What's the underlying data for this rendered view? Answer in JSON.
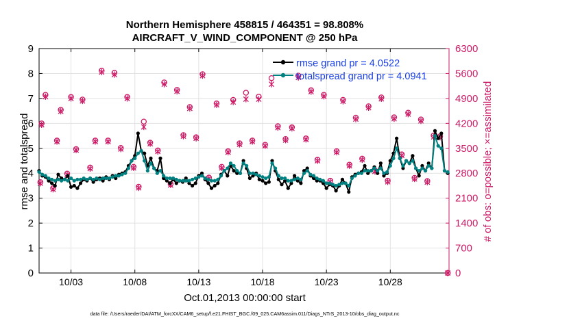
{
  "chart_data": {
    "type": "line",
    "title_line1": "Northern Hemisphere 458815 / 464351 = 98.808%",
    "title_line2": "AIRCRAFT_V_WIND_COMPONENT @ 250 hPa",
    "xlabel": "Oct.01,2013 00:00:00 start",
    "ylabel_left": "rmse and totalspread",
    "ylabel_right": "# of obs: o=possible; ×=assimilated",
    "footnote": "data file: /Users/raeder/DAI/ATM_forcXX/CAM6_setup/f.e21.FHIST_BGC.f09_025.CAM6assim.011/Diags_NTrS_2013-10/obs_diag_output.nc",
    "xlim": [
      0.5,
      32.6
    ],
    "ylim_left": [
      0,
      9
    ],
    "ylim_right": [
      0,
      6300
    ],
    "x_ticks": [
      {
        "label": "10/03",
        "value": 3
      },
      {
        "label": "10/08",
        "value": 8
      },
      {
        "label": "10/13",
        "value": 13
      },
      {
        "label": "10/18",
        "value": 18
      },
      {
        "label": "10/23",
        "value": 23
      },
      {
        "label": "10/28",
        "value": 28
      }
    ],
    "y_ticks_left": [
      "0",
      "1",
      "2",
      "3",
      "4",
      "5",
      "6",
      "7",
      "8",
      "9"
    ],
    "y_ticks_right": [
      "0",
      "700",
      "1400",
      "2100",
      "2800",
      "3500",
      "4200",
      "4900",
      "5600",
      "6300"
    ],
    "legend": [
      {
        "label": "rmse grand pr = 4.0522",
        "color": "#000000"
      },
      {
        "label": "totalspread grand pr = 4.0941",
        "color": "#008080"
      }
    ],
    "colors": {
      "rmse": "#000000",
      "spread": "#008080",
      "obs": "#cc1a66",
      "label_blue": "#1a40e6"
    },
    "x": [
      0.5,
      0.75,
      1.0,
      1.25,
      1.5,
      1.75,
      2.0,
      2.25,
      2.5,
      2.75,
      3.0,
      3.25,
      3.5,
      3.75,
      4.0,
      4.25,
      4.5,
      4.75,
      5.0,
      5.25,
      5.5,
      5.75,
      6.0,
      6.25,
      6.5,
      6.75,
      7.0,
      7.25,
      7.5,
      7.75,
      8.0,
      8.25,
      8.5,
      8.75,
      9.0,
      9.25,
      9.5,
      9.75,
      10.0,
      10.25,
      10.5,
      10.75,
      11.0,
      11.25,
      11.5,
      11.75,
      12.0,
      12.25,
      12.5,
      12.75,
      13.0,
      13.25,
      13.5,
      13.75,
      14.0,
      14.25,
      14.5,
      14.75,
      15.0,
      15.25,
      15.5,
      15.75,
      16.0,
      16.25,
      16.5,
      16.75,
      17.0,
      17.25,
      17.5,
      17.75,
      18.0,
      18.25,
      18.5,
      18.75,
      19.0,
      19.25,
      19.5,
      19.75,
      20.0,
      20.25,
      20.5,
      20.75,
      21.0,
      21.25,
      21.5,
      21.75,
      22.0,
      22.25,
      22.5,
      22.75,
      23.0,
      23.25,
      23.5,
      23.75,
      24.0,
      24.25,
      24.5,
      24.75,
      25.0,
      25.25,
      25.5,
      25.75,
      26.0,
      26.25,
      26.5,
      26.75,
      27.0,
      27.25,
      27.5,
      27.75,
      28.0,
      28.25,
      28.5,
      28.75,
      29.0,
      29.25,
      29.5,
      29.75,
      30.0,
      30.25,
      30.5,
      30.75,
      31.0,
      31.25,
      31.5,
      31.75,
      32.0,
      32.25,
      32.5
    ],
    "series": [
      {
        "name": "rmse",
        "values": [
          4.1,
          3.9,
          3.85,
          3.7,
          3.6,
          3.5,
          3.95,
          3.8,
          3.75,
          3.9,
          3.45,
          3.5,
          3.4,
          3.6,
          3.75,
          3.7,
          3.8,
          3.65,
          3.75,
          3.8,
          3.7,
          3.85,
          3.75,
          3.9,
          3.8,
          3.95,
          4.0,
          4.05,
          4.3,
          4.5,
          4.7,
          5.6,
          4.9,
          4.8,
          4.3,
          4.6,
          4.2,
          4.1,
          4.6,
          3.8,
          3.7,
          3.6,
          3.75,
          3.6,
          3.7,
          3.65,
          3.8,
          3.6,
          3.5,
          3.6,
          3.9,
          4.0,
          3.75,
          3.6,
          3.4,
          3.5,
          3.6,
          3.95,
          4.1,
          3.9,
          4.3,
          4.1,
          4.0,
          4.0,
          4.5,
          4.2,
          3.8,
          3.9,
          4.0,
          3.75,
          3.7,
          3.6,
          3.65,
          4.5,
          4.1,
          3.75,
          3.55,
          3.7,
          3.4,
          3.6,
          3.9,
          3.7,
          3.6,
          4.1,
          4.2,
          3.9,
          3.8,
          3.7,
          3.7,
          3.6,
          3.4,
          3.55,
          3.5,
          3.3,
          3.5,
          3.75,
          3.6,
          3.25,
          3.85,
          3.95,
          4.0,
          4.05,
          4.3,
          4.0,
          4.1,
          4.25,
          4.0,
          4.4,
          3.9,
          4.0,
          4.5,
          4.8,
          5.4,
          4.6,
          4.2,
          4.5,
          4.4,
          4.7,
          4.2,
          3.9,
          4.3,
          4.1,
          4.4,
          4.2,
          5.7,
          5.4,
          5.6,
          4.1,
          4.0
        ]
      },
      {
        "name": "totalspread",
        "values": [
          4.05,
          3.95,
          3.9,
          3.8,
          3.75,
          3.7,
          3.75,
          3.7,
          3.75,
          3.7,
          3.8,
          3.7,
          3.75,
          3.75,
          3.8,
          3.75,
          3.8,
          3.75,
          3.8,
          3.75,
          3.8,
          3.8,
          3.8,
          3.85,
          3.9,
          3.9,
          3.95,
          4.0,
          4.2,
          4.5,
          4.6,
          4.8,
          4.9,
          4.5,
          4.1,
          4.4,
          4.2,
          4.0,
          4.1,
          3.9,
          3.8,
          3.8,
          3.8,
          3.75,
          3.7,
          3.7,
          3.7,
          3.7,
          3.75,
          3.8,
          3.85,
          3.9,
          3.8,
          3.75,
          3.7,
          3.7,
          3.75,
          3.9,
          4.1,
          4.2,
          4.4,
          4.3,
          4.1,
          4.0,
          4.4,
          4.3,
          4.0,
          4.0,
          3.95,
          3.9,
          3.85,
          3.8,
          3.85,
          4.4,
          4.2,
          3.9,
          3.8,
          3.8,
          3.7,
          3.7,
          3.75,
          3.8,
          3.75,
          4.0,
          4.1,
          3.95,
          3.9,
          3.8,
          3.75,
          3.7,
          3.6,
          3.6,
          3.55,
          3.5,
          3.55,
          3.6,
          3.6,
          3.5,
          3.8,
          3.9,
          4.0,
          4.0,
          4.1,
          4.1,
          4.1,
          4.2,
          4.1,
          4.2,
          4.0,
          4.05,
          4.3,
          4.6,
          5.0,
          4.6,
          4.3,
          4.5,
          4.4,
          4.5,
          4.2,
          4.1,
          4.2,
          4.1,
          4.3,
          4.2,
          5.5,
          5.1,
          5.0,
          4.1,
          4.05
        ]
      }
    ],
    "obs_possible": [
      {
        "x": 0.6,
        "v": 2550
      },
      {
        "x": 0.7,
        "v": 4200
      },
      {
        "x": 1.0,
        "v": 5000
      },
      {
        "x": 1.6,
        "v": 2380
      },
      {
        "x": 1.9,
        "v": 3720
      },
      {
        "x": 2.2,
        "v": 4580
      },
      {
        "x": 2.7,
        "v": 2790
      },
      {
        "x": 3.0,
        "v": 4940
      },
      {
        "x": 3.4,
        "v": 3480
      },
      {
        "x": 3.9,
        "v": 4870
      },
      {
        "x": 4.5,
        "v": 2960
      },
      {
        "x": 4.9,
        "v": 3720
      },
      {
        "x": 5.4,
        "v": 5680
      },
      {
        "x": 5.9,
        "v": 3720
      },
      {
        "x": 6.4,
        "v": 5620
      },
      {
        "x": 6.9,
        "v": 3510
      },
      {
        "x": 7.4,
        "v": 4940
      },
      {
        "x": 7.9,
        "v": 2980
      },
      {
        "x": 8.3,
        "v": 2420
      },
      {
        "x": 8.7,
        "v": 4250
      },
      {
        "x": 9.2,
        "v": 3660
      },
      {
        "x": 9.8,
        "v": 3440
      },
      {
        "x": 10.3,
        "v": 5350
      },
      {
        "x": 10.8,
        "v": 2500
      },
      {
        "x": 11.3,
        "v": 5140
      },
      {
        "x": 11.8,
        "v": 3870
      },
      {
        "x": 12.3,
        "v": 4660
      },
      {
        "x": 12.8,
        "v": 3810
      },
      {
        "x": 13.3,
        "v": 5580
      },
      {
        "x": 13.8,
        "v": 2680
      },
      {
        "x": 14.4,
        "v": 4760
      },
      {
        "x": 14.8,
        "v": 2980
      },
      {
        "x": 15.3,
        "v": 3420
      },
      {
        "x": 15.7,
        "v": 4860
      },
      {
        "x": 16.2,
        "v": 3640
      },
      {
        "x": 16.7,
        "v": 5060
      },
      {
        "x": 17.2,
        "v": 3720
      },
      {
        "x": 17.7,
        "v": 4950
      },
      {
        "x": 18.2,
        "v": 3600
      },
      {
        "x": 18.7,
        "v": 5470
      },
      {
        "x": 19.2,
        "v": 4120
      },
      {
        "x": 19.8,
        "v": 3760
      },
      {
        "x": 20.3,
        "v": 4090
      },
      {
        "x": 20.8,
        "v": 5540
      },
      {
        "x": 21.4,
        "v": 3780
      },
      {
        "x": 21.8,
        "v": 5130
      },
      {
        "x": 22.3,
        "v": 3180
      },
      {
        "x": 22.8,
        "v": 5000
      },
      {
        "x": 23.3,
        "v": 2590
      },
      {
        "x": 23.8,
        "v": 3420
      },
      {
        "x": 24.3,
        "v": 4860
      },
      {
        "x": 24.8,
        "v": 3040
      },
      {
        "x": 25.3,
        "v": 4360
      },
      {
        "x": 25.8,
        "v": 3210
      },
      {
        "x": 26.3,
        "v": 4680
      },
      {
        "x": 26.8,
        "v": 2880
      },
      {
        "x": 27.3,
        "v": 4930
      },
      {
        "x": 27.8,
        "v": 2590
      },
      {
        "x": 28.3,
        "v": 4370
      },
      {
        "x": 28.9,
        "v": 3330
      },
      {
        "x": 29.4,
        "v": 4500
      },
      {
        "x": 29.9,
        "v": 2670
      },
      {
        "x": 30.4,
        "v": 4310
      },
      {
        "x": 30.9,
        "v": 2580
      },
      {
        "x": 31.4,
        "v": 3860
      },
      {
        "x": 31.9,
        "v": 3840
      },
      {
        "x": 32.5,
        "v": 0
      }
    ],
    "obs_assimilated": [
      {
        "x": 0.6,
        "v": 2520
      },
      {
        "x": 0.7,
        "v": 4160
      },
      {
        "x": 1.0,
        "v": 4950
      },
      {
        "x": 1.6,
        "v": 2350
      },
      {
        "x": 1.9,
        "v": 3690
      },
      {
        "x": 2.2,
        "v": 4540
      },
      {
        "x": 2.7,
        "v": 2760
      },
      {
        "x": 3.0,
        "v": 4900
      },
      {
        "x": 3.4,
        "v": 3450
      },
      {
        "x": 3.9,
        "v": 4830
      },
      {
        "x": 4.5,
        "v": 2930
      },
      {
        "x": 4.9,
        "v": 3690
      },
      {
        "x": 5.4,
        "v": 5640
      },
      {
        "x": 5.9,
        "v": 3690
      },
      {
        "x": 6.4,
        "v": 5570
      },
      {
        "x": 6.9,
        "v": 3480
      },
      {
        "x": 7.4,
        "v": 4900
      },
      {
        "x": 7.9,
        "v": 2950
      },
      {
        "x": 8.3,
        "v": 2390
      },
      {
        "x": 8.7,
        "v": 4100
      },
      {
        "x": 9.2,
        "v": 3630
      },
      {
        "x": 9.8,
        "v": 3410
      },
      {
        "x": 10.3,
        "v": 5300
      },
      {
        "x": 10.8,
        "v": 2470
      },
      {
        "x": 11.3,
        "v": 5100
      },
      {
        "x": 11.8,
        "v": 3840
      },
      {
        "x": 12.3,
        "v": 4620
      },
      {
        "x": 12.8,
        "v": 3780
      },
      {
        "x": 13.3,
        "v": 5540
      },
      {
        "x": 13.8,
        "v": 2650
      },
      {
        "x": 14.4,
        "v": 4720
      },
      {
        "x": 14.8,
        "v": 2950
      },
      {
        "x": 15.3,
        "v": 3390
      },
      {
        "x": 15.7,
        "v": 4800
      },
      {
        "x": 16.2,
        "v": 3610
      },
      {
        "x": 16.7,
        "v": 4880
      },
      {
        "x": 17.2,
        "v": 3690
      },
      {
        "x": 17.7,
        "v": 4880
      },
      {
        "x": 18.2,
        "v": 3570
      },
      {
        "x": 18.7,
        "v": 5300
      },
      {
        "x": 19.2,
        "v": 4080
      },
      {
        "x": 19.8,
        "v": 3730
      },
      {
        "x": 20.3,
        "v": 4060
      },
      {
        "x": 20.8,
        "v": 5490
      },
      {
        "x": 21.4,
        "v": 3750
      },
      {
        "x": 21.8,
        "v": 5090
      },
      {
        "x": 22.3,
        "v": 3150
      },
      {
        "x": 22.8,
        "v": 4960
      },
      {
        "x": 23.3,
        "v": 2560
      },
      {
        "x": 23.8,
        "v": 3390
      },
      {
        "x": 24.3,
        "v": 4820
      },
      {
        "x": 24.8,
        "v": 3010
      },
      {
        "x": 25.3,
        "v": 4320
      },
      {
        "x": 25.8,
        "v": 3180
      },
      {
        "x": 26.3,
        "v": 4640
      },
      {
        "x": 26.8,
        "v": 2850
      },
      {
        "x": 27.3,
        "v": 4890
      },
      {
        "x": 27.8,
        "v": 2560
      },
      {
        "x": 28.3,
        "v": 4330
      },
      {
        "x": 28.9,
        "v": 3300
      },
      {
        "x": 29.4,
        "v": 4460
      },
      {
        "x": 29.9,
        "v": 2640
      },
      {
        "x": 30.4,
        "v": 4270
      },
      {
        "x": 30.9,
        "v": 2550
      },
      {
        "x": 31.4,
        "v": 3820
      },
      {
        "x": 31.9,
        "v": 3810
      },
      {
        "x": 32.5,
        "v": 0
      }
    ]
  }
}
